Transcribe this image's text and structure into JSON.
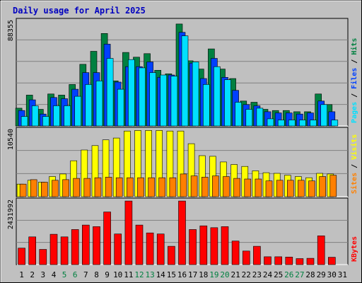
{
  "title": "Daily usage for April 2025",
  "colors": {
    "hits": "#008040",
    "files": "#0040ff",
    "pages": "#00e0ff",
    "visits": "#ffff00",
    "sites": "#ff8000",
    "kbytes": "#ff0000",
    "weekend": "#008040",
    "title": "#0000c0",
    "plot_bg": "#c0c0c0",
    "grid": "#808080"
  },
  "chart_data": [
    {
      "type": "bar",
      "panel": "top",
      "y_max_label": "88355",
      "ylim": [
        0,
        88355
      ],
      "grid": true,
      "legend": [
        "Pages",
        "Files",
        "Hits"
      ],
      "categories": [
        "1",
        "2",
        "3",
        "4",
        "5",
        "6",
        "7",
        "8",
        "9",
        "10",
        "11",
        "12",
        "13",
        "14",
        "15",
        "16",
        "17",
        "18",
        "19",
        "20",
        "21",
        "22",
        "23",
        "24",
        "25",
        "26",
        "27",
        "28",
        "29",
        "30",
        "31"
      ],
      "weekend_days": [
        "5",
        "6",
        "12",
        "13",
        "19",
        "20",
        "26",
        "27"
      ],
      "series": [
        {
          "name": "Hits",
          "values": [
            15000,
            26000,
            14000,
            27000,
            26000,
            35000,
            52000,
            63000,
            78000,
            38000,
            62000,
            58000,
            61000,
            47000,
            44000,
            86000,
            55000,
            48000,
            65000,
            48000,
            40000,
            21000,
            20000,
            14000,
            13000,
            13000,
            12000,
            12000,
            27000,
            18000,
            0
          ]
        },
        {
          "name": "Files",
          "values": [
            13000,
            22000,
            10000,
            24000,
            23000,
            31000,
            45000,
            45000,
            69000,
            37000,
            50000,
            50000,
            54000,
            41000,
            43000,
            79000,
            53000,
            40000,
            57000,
            41000,
            30000,
            18000,
            17000,
            12000,
            11000,
            11000,
            10000,
            11000,
            21000,
            12000,
            0
          ]
        },
        {
          "name": "Pages",
          "values": [
            8000,
            17000,
            8000,
            17000,
            17000,
            25000,
            35000,
            38000,
            57000,
            31000,
            56000,
            49000,
            45000,
            43000,
            42000,
            76000,
            54000,
            35000,
            50000,
            39000,
            20000,
            14000,
            15000,
            6000,
            5000,
            5000,
            5000,
            5000,
            18000,
            5000,
            0
          ]
        }
      ]
    },
    {
      "type": "bar",
      "panel": "middle",
      "y_max_label": "10540",
      "ylim": [
        0,
        10540
      ],
      "grid": true,
      "legend": [
        "Sites",
        "Visits"
      ],
      "categories": [
        "1",
        "2",
        "3",
        "4",
        "5",
        "6",
        "7",
        "8",
        "9",
        "10",
        "11",
        "12",
        "13",
        "14",
        "15",
        "16",
        "17",
        "18",
        "19",
        "20",
        "21",
        "22",
        "23",
        "24",
        "25",
        "26",
        "27",
        "28",
        "29",
        "30",
        "31"
      ],
      "series": [
        {
          "name": "Visits",
          "values": [
            2000,
            2600,
            2300,
            3200,
            3600,
            5700,
            7400,
            8100,
            9000,
            9300,
            10400,
            10500,
            10500,
            10500,
            10400,
            10400,
            8400,
            6500,
            6400,
            5500,
            5100,
            4800,
            4100,
            3800,
            3700,
            3400,
            3200,
            3000,
            3700,
            3600,
            0
          ]
        },
        {
          "name": "Sites",
          "values": [
            2000,
            2700,
            2300,
            2600,
            2700,
            2900,
            2900,
            3000,
            3100,
            3000,
            3000,
            3000,
            3000,
            3000,
            3000,
            3600,
            3300,
            3100,
            3300,
            3200,
            2900,
            2800,
            2800,
            2500,
            2600,
            2600,
            2600,
            2500,
            3200,
            3400,
            0
          ]
        }
      ]
    },
    {
      "type": "bar",
      "panel": "bottom",
      "y_max_label": "2431992",
      "ylim": [
        0,
        2431992
      ],
      "grid": true,
      "legend": [
        "KBytes"
      ],
      "categories": [
        "1",
        "2",
        "3",
        "4",
        "5",
        "6",
        "7",
        "8",
        "9",
        "10",
        "11",
        "12",
        "13",
        "14",
        "15",
        "16",
        "17",
        "18",
        "19",
        "20",
        "21",
        "22",
        "23",
        "24",
        "25",
        "26",
        "27",
        "28",
        "29",
        "30",
        "31"
      ],
      "series": [
        {
          "name": "KBytes",
          "values": [
            630000,
            1060000,
            580000,
            1160000,
            1060000,
            1340000,
            1510000,
            1450000,
            2010000,
            1170000,
            2430000,
            1510000,
            1210000,
            1170000,
            700000,
            2430000,
            1340000,
            1480000,
            1410000,
            1450000,
            900000,
            520000,
            700000,
            300000,
            300000,
            290000,
            230000,
            240000,
            1100000,
            280000,
            0
          ]
        }
      ]
    }
  ]
}
